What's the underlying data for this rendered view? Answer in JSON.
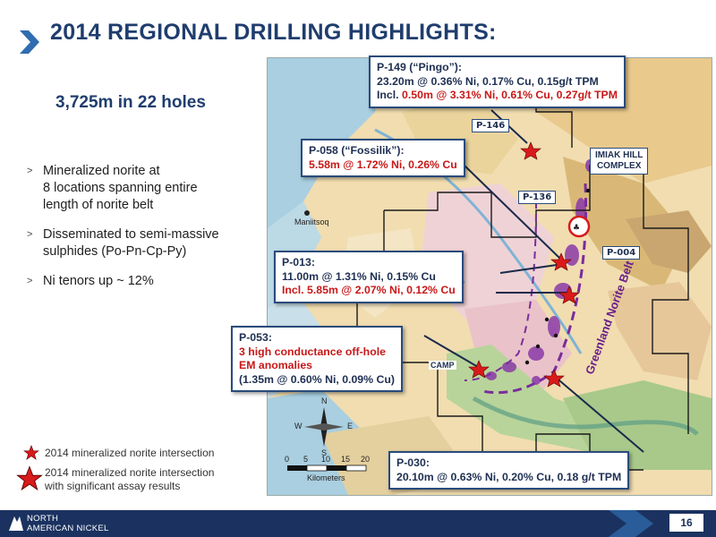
{
  "header": {
    "title": "2014 REGIONAL DRILLING HIGHLIGHTS:"
  },
  "summary": "3,725m in 22 holes",
  "bullets": [
    {
      "line1": "Mineralized norite  at",
      "line2": "8 locations spanning entire",
      "line3": "length of norite belt"
    },
    {
      "line1": "Disseminated to semi-massive",
      "line2": "sulphides (Po-Pn-Cp-Py)"
    },
    {
      "line1": "Ni tenors up ~ 12%"
    }
  ],
  "callouts": {
    "p149": {
      "title": "P-149 (“Pingo”):",
      "line1": "23.20m @ 0.36% Ni, 0.17% Cu, 0.15g/t TPM",
      "line2_prefix": "Incl. ",
      "line2": "0.50m @ 3.31% Ni, 0.61% Cu, 0.27g/t TPM"
    },
    "p058": {
      "title": "P-058 (“Fossilik”):",
      "line1": "5.58m @ 1.72% Ni, 0.26% Cu"
    },
    "p013": {
      "title": "P-013:",
      "line1": "11.00m @ 1.31% Ni, 0.15% Cu",
      "line2": "Incl. 5.85m @ 2.07% Ni, 0.12% Cu"
    },
    "p053": {
      "title": "P-053:",
      "line1": "3 high conductance off-hole",
      "line2": "EM anomalies",
      "line3": "(1.35m @ 0.60% Ni, 0.09% Cu)"
    },
    "p030": {
      "title": "P-030:",
      "line1": "20.10m @ 0.63% Ni, 0.20% Cu, 0.18 g/t TPM"
    }
  },
  "map_tags": {
    "p146": "P-146",
    "p136": "P-136",
    "p004": "P-004",
    "camp": "CAMP",
    "maniitsoq": "Maniitsoq",
    "complex_line1": "IMIAK HILL",
    "complex_line2": "COMPLEX",
    "belt": "Greenland Norite Belt"
  },
  "compass": {
    "n": "N",
    "s": "S",
    "e": "E",
    "w": "W"
  },
  "scalebar": {
    "ticks": [
      "0",
      "5",
      "10",
      "15",
      "20"
    ],
    "unit": "Kilometers"
  },
  "legend": [
    {
      "text": "2014 mineralized norite intersection"
    },
    {
      "line1": "2014 mineralized norite intersection",
      "line2": "with significant assay results"
    }
  ],
  "footer": {
    "logo_line1": "NORTH",
    "logo_line2": "AMERICAN NICKEL",
    "page_number": "16"
  },
  "colors": {
    "navy": "#1f3d6e",
    "red": "#c81818",
    "belt_purple": "#7a2c9c",
    "footer": "#1b3260"
  }
}
